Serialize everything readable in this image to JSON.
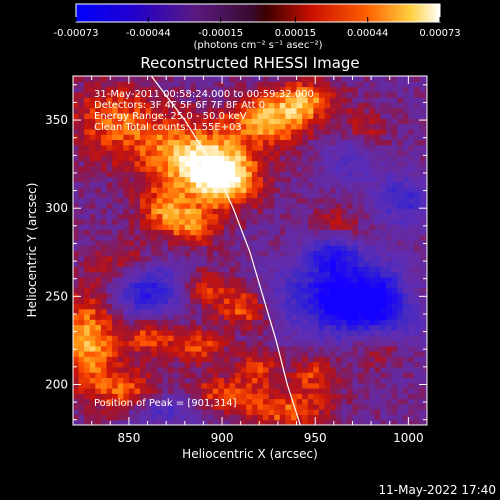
{
  "colorbar": {
    "tick_labels": [
      "-0.00073",
      "-0.00044",
      "-0.00015",
      "0.00015",
      "0.00044",
      "0.00073"
    ],
    "tick_values": [
      -0.00073,
      -0.00044,
      -0.00015,
      0.00015,
      0.00044,
      0.00073
    ],
    "range": [
      -0.00073,
      0.00073
    ],
    "unit_label": "(photons cm⁻² s⁻¹ asec⁻²)"
  },
  "title": "Reconstructed RHESSI Image",
  "info_lines": [
    "31-May-2011 00:58:24.000 to 00:59:32.000",
    "Detectors: 3F 4F 5F 6F 7F 8F  Att 0",
    "Energy Range: 25.0 - 50.0 keV",
    "Clean     Total counts: 1.55E+03"
  ],
  "peak_label": "Position of Peak = [901,314]",
  "footer_date": "11-May-2022 17:40",
  "chart_data": {
    "type": "heatmap",
    "title": "Reconstructed RHESSI Image",
    "xlabel": "Heliocentric X (arcsec)",
    "ylabel": "Heliocentric Y (arcsec)",
    "xlim": [
      820,
      1010
    ],
    "ylim": [
      177,
      375
    ],
    "x_ticks": [
      850,
      900,
      950,
      1000
    ],
    "y_ticks": [
      200,
      250,
      300,
      350
    ],
    "x_tick_labels": [
      "850",
      "900",
      "950",
      "1000"
    ],
    "y_tick_labels": [
      "200",
      "250",
      "300",
      "350"
    ],
    "colormap": [
      "#0000ff",
      "#3a28c0",
      "#6a1e9e",
      "#b31a1a",
      "#ff4400",
      "#ffaa00",
      "#ffffff"
    ],
    "peak_position": [
      901,
      314
    ],
    "limb_curve": [
      [
        862,
        375
      ],
      [
        880,
        350
      ],
      [
        896,
        323
      ],
      [
        906,
        300
      ],
      [
        915,
        275
      ],
      [
        922,
        250
      ],
      [
        929,
        225
      ],
      [
        935,
        200
      ],
      [
        942,
        177
      ]
    ],
    "hot_spots": [
      {
        "x": 901,
        "y": 318,
        "sx": 14,
        "sy": 12,
        "amp": 1.0
      },
      {
        "x": 880,
        "y": 330,
        "sx": 18,
        "sy": 14,
        "amp": 0.7
      },
      {
        "x": 925,
        "y": 350,
        "sx": 16,
        "sy": 10,
        "amp": 0.75
      },
      {
        "x": 945,
        "y": 362,
        "sx": 12,
        "sy": 8,
        "amp": 0.6
      },
      {
        "x": 868,
        "y": 300,
        "sx": 10,
        "sy": 9,
        "amp": 0.55
      },
      {
        "x": 885,
        "y": 290,
        "sx": 10,
        "sy": 8,
        "amp": 0.6
      },
      {
        "x": 843,
        "y": 350,
        "sx": 18,
        "sy": 16,
        "amp": 0.55
      },
      {
        "x": 828,
        "y": 225,
        "sx": 12,
        "sy": 20,
        "amp": 0.75
      },
      {
        "x": 850,
        "y": 268,
        "sx": 14,
        "sy": 10,
        "amp": 0.5
      },
      {
        "x": 890,
        "y": 255,
        "sx": 12,
        "sy": 8,
        "amp": 0.45
      },
      {
        "x": 912,
        "y": 243,
        "sx": 10,
        "sy": 8,
        "amp": 0.55
      },
      {
        "x": 862,
        "y": 228,
        "sx": 10,
        "sy": 8,
        "amp": 0.55
      },
      {
        "x": 888,
        "y": 222,
        "sx": 10,
        "sy": 7,
        "amp": 0.5
      },
      {
        "x": 850,
        "y": 195,
        "sx": 12,
        "sy": 10,
        "amp": 0.55
      },
      {
        "x": 900,
        "y": 195,
        "sx": 14,
        "sy": 8,
        "amp": 0.5
      },
      {
        "x": 935,
        "y": 185,
        "sx": 16,
        "sy": 8,
        "amp": 0.55
      },
      {
        "x": 870,
        "y": 178,
        "sx": 10,
        "sy": 6,
        "amp": 0.4
      },
      {
        "x": 983,
        "y": 222,
        "sx": 10,
        "sy": 8,
        "amp": 0.4
      },
      {
        "x": 962,
        "y": 290,
        "sx": 10,
        "sy": 8,
        "amp": 0.35
      },
      {
        "x": 975,
        "y": 342,
        "sx": 10,
        "sy": 10,
        "amp": 0.4
      },
      {
        "x": 1003,
        "y": 250,
        "sx": 8,
        "sy": 10,
        "amp": 0.35
      },
      {
        "x": 950,
        "y": 205,
        "sx": 10,
        "sy": 8,
        "amp": 0.45
      },
      {
        "x": 920,
        "y": 210,
        "sx": 8,
        "sy": 8,
        "amp": 0.4
      }
    ],
    "cold_spots": [
      {
        "x": 860,
        "y": 255,
        "sx": 14,
        "sy": 12,
        "amp": 0.9
      },
      {
        "x": 960,
        "y": 250,
        "sx": 22,
        "sy": 14,
        "amp": 0.8
      },
      {
        "x": 985,
        "y": 245,
        "sx": 18,
        "sy": 14,
        "amp": 0.8
      },
      {
        "x": 868,
        "y": 183,
        "sx": 14,
        "sy": 8,
        "amp": 0.7
      },
      {
        "x": 998,
        "y": 305,
        "sx": 12,
        "sy": 10,
        "amp": 0.55
      },
      {
        "x": 960,
        "y": 275,
        "sx": 10,
        "sy": 8,
        "amp": 0.7
      },
      {
        "x": 970,
        "y": 330,
        "sx": 10,
        "sy": 10,
        "amp": 0.5
      }
    ]
  }
}
